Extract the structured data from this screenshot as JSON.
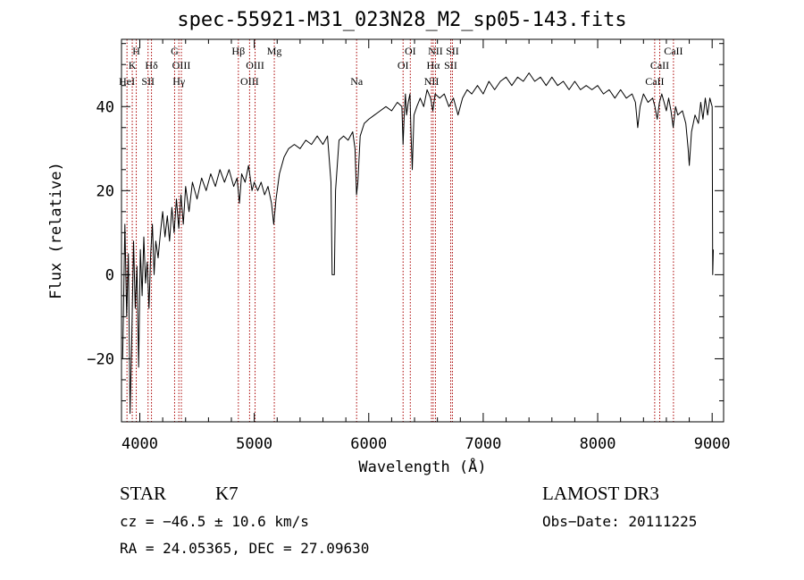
{
  "header": {
    "title": "spec-55921-M31_023N28_M2_sp05-143.fits"
  },
  "footer": {
    "object_class": "STAR",
    "subclass": "K7",
    "survey": "LAMOST DR3",
    "redshift_line": "cz = −46.5 ± 10.6 km/s",
    "obs_date": "Obs−Date: 20111225",
    "coords": "RA =  24.05365, DEC =  27.09630"
  },
  "chart_data": {
    "type": "line",
    "title": "spec-55921-M31_023N28_M2_sp05-143.fits",
    "xlabel": "Wavelength (Å)",
    "ylabel": "Flux (relative)",
    "xlim": [
      3840,
      9100
    ],
    "ylim": [
      -35,
      56
    ],
    "xticks": [
      4000,
      5000,
      6000,
      7000,
      8000,
      9000
    ],
    "yticks": [
      -20,
      0,
      20,
      40
    ],
    "xminor_step": 200,
    "yminor_step": 5,
    "line_color": "#000000",
    "marker_color": "#aa0000",
    "spectrum": [
      [
        3850,
        -20
      ],
      [
        3870,
        12
      ],
      [
        3885,
        -10
      ],
      [
        3900,
        5
      ],
      [
        3915,
        -33
      ],
      [
        3930,
        -15
      ],
      [
        3945,
        8
      ],
      [
        3960,
        -8
      ],
      [
        3975,
        2
      ],
      [
        3990,
        -22
      ],
      [
        4005,
        6
      ],
      [
        4020,
        -5
      ],
      [
        4035,
        9
      ],
      [
        4050,
        -2
      ],
      [
        4065,
        3
      ],
      [
        4080,
        -8
      ],
      [
        4095,
        5
      ],
      [
        4110,
        12
      ],
      [
        4125,
        0
      ],
      [
        4140,
        8
      ],
      [
        4160,
        4
      ],
      [
        4180,
        10
      ],
      [
        4200,
        15
      ],
      [
        4220,
        9
      ],
      [
        4240,
        14
      ],
      [
        4260,
        8
      ],
      [
        4280,
        16
      ],
      [
        4300,
        10
      ],
      [
        4320,
        18
      ],
      [
        4340,
        11
      ],
      [
        4360,
        19
      ],
      [
        4380,
        12
      ],
      [
        4400,
        21
      ],
      [
        4430,
        15
      ],
      [
        4460,
        22
      ],
      [
        4500,
        18
      ],
      [
        4540,
        23
      ],
      [
        4580,
        20
      ],
      [
        4620,
        24
      ],
      [
        4660,
        21
      ],
      [
        4700,
        25
      ],
      [
        4740,
        22
      ],
      [
        4780,
        25
      ],
      [
        4820,
        21
      ],
      [
        4850,
        23
      ],
      [
        4870,
        17
      ],
      [
        4890,
        24
      ],
      [
        4920,
        22
      ],
      [
        4950,
        26
      ],
      [
        4980,
        20
      ],
      [
        5000,
        22
      ],
      [
        5030,
        20
      ],
      [
        5060,
        22
      ],
      [
        5090,
        19
      ],
      [
        5120,
        21
      ],
      [
        5150,
        17
      ],
      [
        5170,
        12
      ],
      [
        5190,
        18
      ],
      [
        5220,
        24
      ],
      [
        5260,
        28
      ],
      [
        5300,
        30
      ],
      [
        5350,
        31
      ],
      [
        5400,
        30
      ],
      [
        5450,
        32
      ],
      [
        5500,
        31
      ],
      [
        5550,
        33
      ],
      [
        5600,
        31
      ],
      [
        5640,
        33
      ],
      [
        5670,
        22
      ],
      [
        5680,
        0
      ],
      [
        5700,
        0
      ],
      [
        5710,
        20
      ],
      [
        5740,
        32
      ],
      [
        5780,
        33
      ],
      [
        5820,
        32
      ],
      [
        5860,
        34
      ],
      [
        5880,
        30
      ],
      [
        5893,
        19
      ],
      [
        5905,
        22
      ],
      [
        5925,
        33
      ],
      [
        5960,
        36
      ],
      [
        6000,
        37
      ],
      [
        6050,
        38
      ],
      [
        6100,
        39
      ],
      [
        6150,
        40
      ],
      [
        6200,
        39
      ],
      [
        6250,
        41
      ],
      [
        6290,
        40
      ],
      [
        6300,
        31
      ],
      [
        6310,
        38
      ],
      [
        6320,
        43
      ],
      [
        6330,
        38
      ],
      [
        6345,
        41
      ],
      [
        6360,
        43
      ],
      [
        6370,
        33
      ],
      [
        6380,
        25
      ],
      [
        6395,
        38
      ],
      [
        6420,
        40
      ],
      [
        6450,
        42
      ],
      [
        6480,
        40
      ],
      [
        6510,
        44
      ],
      [
        6540,
        42
      ],
      [
        6560,
        39
      ],
      [
        6580,
        43
      ],
      [
        6620,
        42
      ],
      [
        6660,
        43
      ],
      [
        6700,
        40
      ],
      [
        6740,
        42
      ],
      [
        6780,
        38
      ],
      [
        6820,
        42
      ],
      [
        6860,
        44
      ],
      [
        6900,
        43
      ],
      [
        6950,
        45
      ],
      [
        7000,
        43
      ],
      [
        7050,
        46
      ],
      [
        7100,
        44
      ],
      [
        7150,
        46
      ],
      [
        7200,
        47
      ],
      [
        7250,
        45
      ],
      [
        7300,
        47
      ],
      [
        7350,
        46
      ],
      [
        7400,
        48
      ],
      [
        7450,
        46
      ],
      [
        7500,
        47
      ],
      [
        7550,
        45
      ],
      [
        7600,
        47
      ],
      [
        7650,
        45
      ],
      [
        7700,
        46
      ],
      [
        7750,
        44
      ],
      [
        7800,
        46
      ],
      [
        7850,
        44
      ],
      [
        7900,
        45
      ],
      [
        7950,
        44
      ],
      [
        8000,
        45
      ],
      [
        8050,
        43
      ],
      [
        8100,
        44
      ],
      [
        8150,
        42
      ],
      [
        8200,
        44
      ],
      [
        8250,
        42
      ],
      [
        8300,
        43
      ],
      [
        8330,
        41
      ],
      [
        8350,
        35
      ],
      [
        8370,
        40
      ],
      [
        8400,
        43
      ],
      [
        8440,
        41
      ],
      [
        8480,
        42
      ],
      [
        8500,
        40
      ],
      [
        8520,
        37
      ],
      [
        8540,
        41
      ],
      [
        8560,
        43
      ],
      [
        8580,
        41
      ],
      [
        8600,
        39
      ],
      [
        8620,
        42
      ],
      [
        8640,
        39
      ],
      [
        8660,
        35
      ],
      [
        8680,
        40
      ],
      [
        8700,
        38
      ],
      [
        8740,
        39
      ],
      [
        8770,
        36
      ],
      [
        8790,
        30
      ],
      [
        8800,
        26
      ],
      [
        8820,
        34
      ],
      [
        8850,
        38
      ],
      [
        8880,
        36
      ],
      [
        8900,
        41
      ],
      [
        8920,
        37
      ],
      [
        8940,
        42
      ],
      [
        8960,
        38
      ],
      [
        8980,
        42
      ],
      [
        9000,
        40
      ],
      [
        9005,
        0
      ],
      [
        9010,
        6
      ]
    ],
    "lines": [
      {
        "label": "HeI",
        "wl": 3888,
        "row": 2
      },
      {
        "label": "K",
        "wl": 3934,
        "row": 1
      },
      {
        "label": "H",
        "wl": 3969,
        "row": 0
      },
      {
        "label": "SII",
        "wl": 4072,
        "row": 2
      },
      {
        "label": "Hδ",
        "wl": 4102,
        "row": 1
      },
      {
        "label": "G",
        "wl": 4304,
        "row": 0
      },
      {
        "label": "Hγ",
        "wl": 4341,
        "row": 2
      },
      {
        "label": "OIII",
        "wl": 4363,
        "row": 1
      },
      {
        "label": "Hβ",
        "wl": 4861,
        "row": 0
      },
      {
        "label": "OIII",
        "wl": 4959,
        "row": 2
      },
      {
        "label": "OIII",
        "wl": 5007,
        "row": 1
      },
      {
        "label": "Mg",
        "wl": 5175,
        "row": 0
      },
      {
        "label": "Na",
        "wl": 5894,
        "row": 2
      },
      {
        "label": "OI",
        "wl": 6300,
        "row": 1
      },
      {
        "label": "OI",
        "wl": 6363,
        "row": 0
      },
      {
        "label": "NII",
        "wl": 6548,
        "row": 2
      },
      {
        "label": "Hα",
        "wl": 6563,
        "row": 1
      },
      {
        "label": "NII",
        "wl": 6583,
        "row": 0
      },
      {
        "label": "SII",
        "wl": 6716,
        "row": 1
      },
      {
        "label": "SII",
        "wl": 6731,
        "row": 0
      },
      {
        "label": "CaII",
        "wl": 8498,
        "row": 2
      },
      {
        "label": "CaII",
        "wl": 8542,
        "row": 1
      },
      {
        "label": "CaII",
        "wl": 8662,
        "row": 0
      }
    ]
  }
}
